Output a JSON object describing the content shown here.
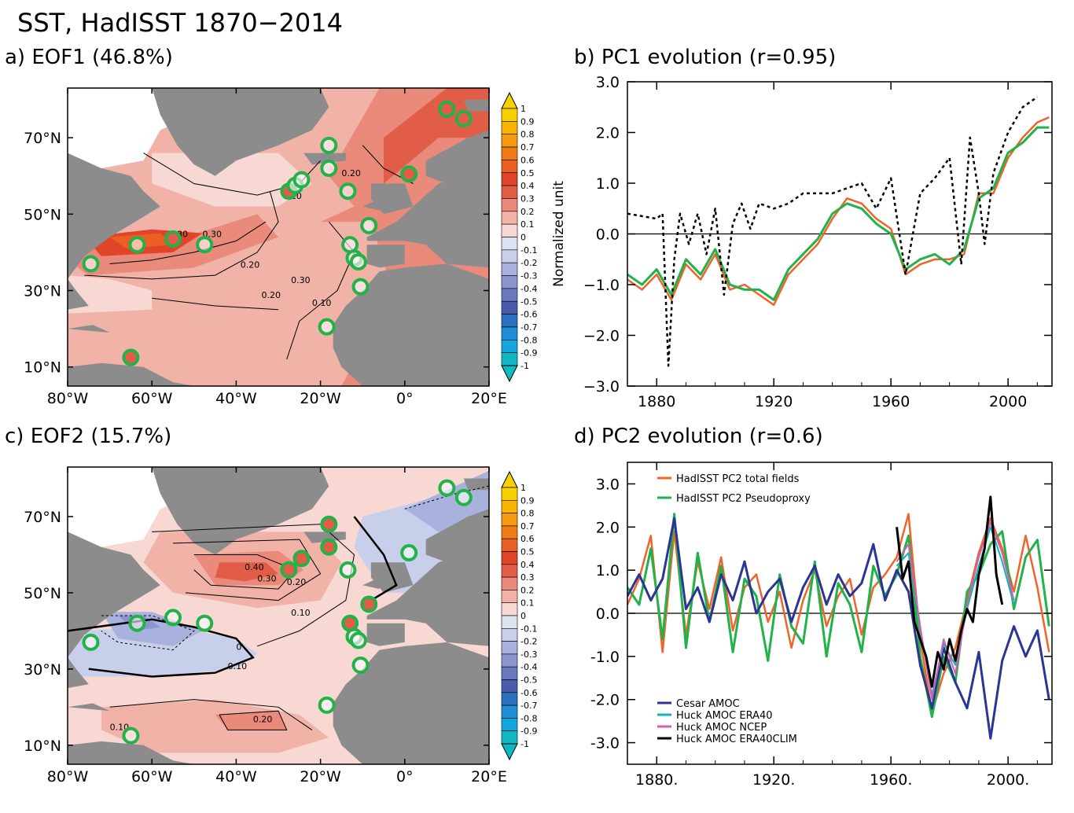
{
  "figure_title": "SST, HadISST 1870−2014",
  "colors": {
    "land": "#8c8c8c",
    "ice": "#ffffff",
    "station_ring": "#21b24a",
    "hadisst_total": "#f0642a",
    "hadisst_pseudo": "#21b24a",
    "cesar": "#2b3594",
    "huck_era40": "#10b5b5",
    "huck_ncep": "#d060b0",
    "huck_clim": "#000000",
    "proxy_dotted": "#000000"
  },
  "colorbar": {
    "levels": [
      "1",
      "0.9",
      "0.8",
      "0.7",
      "0.6",
      "0.5",
      "0.4",
      "0.3",
      "0.2",
      "0.1",
      "0",
      "-0.1",
      "-0.2",
      "-0.3",
      "-0.4",
      "-0.5",
      "-0.6",
      "-0.7",
      "-0.8",
      "-0.9",
      "-1"
    ],
    "colors": [
      "#f7d000",
      "#f9b400",
      "#f89a10",
      "#f07c18",
      "#ec5f22",
      "#e0452a",
      "#e25d48",
      "#e98a7a",
      "#f1b2a8",
      "#f8d8d2",
      "#dde2f1",
      "#c7cfea",
      "#a8b2dc",
      "#8a96cc",
      "#6a78bc",
      "#4a5ca8",
      "#2c70c0",
      "#1e8ed6",
      "#12a8de",
      "#10b8c4"
    ]
  },
  "chart_data": [
    {
      "type": "heatmap",
      "panel": "a",
      "title": "a) EOF1 (46.8%)",
      "xlabel": "",
      "ylabel": "",
      "xlim": [
        -80,
        20
      ],
      "ylim": [
        5,
        83
      ],
      "x_ticks": [
        "80°W",
        "60°W",
        "40°W",
        "20°W",
        "0°",
        "20°E"
      ],
      "y_ticks": [
        "10°N",
        "30°N",
        "50°N",
        "70°N"
      ],
      "contour_labels": [
        "0.10",
        "0.20",
        "0.30",
        "0.20",
        "0.30",
        "0.20",
        "0.10",
        "0.30"
      ],
      "stations": [
        [
          -74.5,
          37
        ],
        [
          -63.5,
          42
        ],
        [
          -55,
          43.5
        ],
        [
          -47.5,
          42
        ],
        [
          -27.5,
          56
        ],
        [
          -26,
          57.5
        ],
        [
          -24.5,
          59
        ],
        [
          -18,
          68
        ],
        [
          -18,
          62
        ],
        [
          -13.5,
          56
        ],
        [
          -13,
          42
        ],
        [
          -12,
          38.5
        ],
        [
          -11,
          37.5
        ],
        [
          -8.5,
          47
        ],
        [
          -10.5,
          31
        ],
        [
          -18.5,
          20.5
        ],
        [
          -65,
          12.5
        ],
        [
          1,
          60.5
        ],
        [
          10,
          77.5
        ],
        [
          14,
          75
        ]
      ],
      "stations_filled": [
        2,
        4,
        16,
        17,
        18,
        19
      ]
    },
    {
      "type": "line",
      "panel": "b",
      "title": "b) PC1 evolution (r=0.95)",
      "xlabel": "",
      "ylabel": "Normalized unit",
      "xlim": [
        1870,
        2015
      ],
      "ylim": [
        -3,
        3
      ],
      "x_ticks": [
        "1880",
        "1920",
        "1960",
        "2000"
      ],
      "y_ticks": [
        "−3.0",
        "−2.0",
        "−1.0",
        "0.0",
        "1.0",
        "2.0",
        "3.0"
      ],
      "series": [
        {
          "color_key": "hadisst_total",
          "dash": "",
          "width": 2.5,
          "x": [
            1870,
            1875,
            1880,
            1885,
            1890,
            1895,
            1900,
            1905,
            1910,
            1915,
            1920,
            1925,
            1930,
            1935,
            1940,
            1945,
            1950,
            1955,
            1960,
            1965,
            1970,
            1975,
            1980,
            1985,
            1990,
            1995,
            2000,
            2005,
            2010,
            2014
          ],
          "y": [
            -0.9,
            -1.1,
            -0.8,
            -1.3,
            -0.6,
            -0.9,
            -0.4,
            -1.1,
            -1.0,
            -1.2,
            -1.4,
            -0.8,
            -0.5,
            -0.2,
            0.3,
            0.7,
            0.6,
            0.3,
            0.1,
            -0.8,
            -0.6,
            -0.5,
            -0.5,
            -0.4,
            0.8,
            0.8,
            1.5,
            1.9,
            2.2,
            2.3
          ]
        },
        {
          "color_key": "hadisst_pseudo",
          "dash": "",
          "width": 3,
          "x": [
            1870,
            1875,
            1880,
            1885,
            1890,
            1895,
            1900,
            1905,
            1910,
            1915,
            1920,
            1925,
            1930,
            1935,
            1940,
            1945,
            1950,
            1955,
            1960,
            1965,
            1970,
            1975,
            1980,
            1985,
            1990,
            1995,
            2000,
            2005,
            2010,
            2014
          ],
          "y": [
            -0.8,
            -1.0,
            -0.7,
            -1.2,
            -0.5,
            -0.8,
            -0.3,
            -1.0,
            -1.1,
            -1.1,
            -1.3,
            -0.7,
            -0.4,
            -0.1,
            0.4,
            0.6,
            0.5,
            0.2,
            0.0,
            -0.7,
            -0.5,
            -0.4,
            -0.6,
            -0.3,
            0.7,
            0.9,
            1.6,
            1.8,
            2.1,
            2.1
          ]
        },
        {
          "color_key": "proxy_dotted",
          "dash": "4 4",
          "width": 2.5,
          "x": [
            1870,
            1875,
            1880,
            1882,
            1884,
            1886,
            1888,
            1891,
            1894,
            1897,
            1900,
            1903,
            1906,
            1909,
            1912,
            1915,
            1920,
            1925,
            1930,
            1935,
            1940,
            1945,
            1950,
            1955,
            1960,
            1965,
            1970,
            1975,
            1980,
            1984,
            1987,
            1990,
            1992,
            1995,
            2000,
            2005,
            2010
          ],
          "y": [
            0.4,
            0.35,
            0.3,
            0.4,
            -2.6,
            -0.5,
            0.4,
            -0.2,
            0.4,
            -0.4,
            0.5,
            -1.2,
            0.2,
            0.6,
            0.1,
            0.6,
            0.5,
            0.6,
            0.8,
            0.8,
            0.8,
            0.9,
            1.0,
            0.5,
            1.1,
            -0.8,
            0.8,
            1.1,
            1.5,
            -0.6,
            1.9,
            0.8,
            -0.2,
            1.2,
            2.0,
            2.5,
            2.7
          ]
        }
      ]
    },
    {
      "type": "heatmap",
      "panel": "c",
      "title": "c) EOF2 (15.7%)",
      "xlabel": "",
      "ylabel": "",
      "xlim": [
        -80,
        20
      ],
      "ylim": [
        5,
        83
      ],
      "x_ticks": [
        "80°W",
        "60°W",
        "40°W",
        "20°W",
        "0°",
        "20°E"
      ],
      "y_ticks": [
        "10°N",
        "30°N",
        "50°N",
        "70°N"
      ],
      "contour_labels": [
        "0.40",
        "0.30",
        "0.20",
        "0.10",
        "0.10",
        "0",
        "0.10",
        "0.20"
      ],
      "stations": [
        [
          -74.5,
          37
        ],
        [
          -63.5,
          42
        ],
        [
          -55,
          43.5
        ],
        [
          -47.5,
          42
        ],
        [
          -27.5,
          56
        ],
        [
          -24.5,
          59
        ],
        [
          -18,
          68
        ],
        [
          -18,
          62
        ],
        [
          -13.5,
          56
        ],
        [
          -13,
          42
        ],
        [
          -12,
          38.5
        ],
        [
          -11,
          37.5
        ],
        [
          -8.5,
          47
        ],
        [
          -10.5,
          31
        ],
        [
          -18.5,
          20.5
        ],
        [
          -65,
          12.5
        ],
        [
          1,
          60.5
        ],
        [
          10,
          77.5
        ],
        [
          14,
          75
        ]
      ],
      "stations_filled": [
        4,
        5,
        6,
        7,
        9,
        12
      ]
    },
    {
      "type": "line",
      "panel": "d",
      "title": "d) PC2 evolution (r=0.6)",
      "xlabel": "",
      "ylabel": "",
      "xlim": [
        1870,
        2015
      ],
      "ylim": [
        -3.5,
        3.5
      ],
      "x_ticks": [
        "1880.",
        "1920.",
        "1960.",
        "2000."
      ],
      "y_ticks": [
        "-3.0",
        "-2.0",
        "-1.0",
        "0.0",
        "1.0",
        "2.0",
        "3.0"
      ],
      "legend_top": [
        {
          "name": "HadISST PC2 total fields",
          "color_key": "hadisst_total"
        },
        {
          "name": "HadISST PC2 Pseudoproxy",
          "color_key": "hadisst_pseudo"
        }
      ],
      "legend_bottom": [
        {
          "name": "Cesar AMOC",
          "color_key": "cesar"
        },
        {
          "name": "Huck AMOC ERA40",
          "color_key": "huck_era40"
        },
        {
          "name": "Huck AMOC NCEP",
          "color_key": "huck_ncep"
        },
        {
          "name": "Huck AMOC ERA40CLIM",
          "color_key": "huck_clim"
        }
      ],
      "series": [
        {
          "color_key": "hadisst_total",
          "width": 2.5,
          "x": [
            1870,
            1874,
            1878,
            1882,
            1886,
            1890,
            1894,
            1898,
            1902,
            1906,
            1910,
            1914,
            1918,
            1922,
            1926,
            1930,
            1934,
            1938,
            1942,
            1946,
            1950,
            1954,
            1958,
            1962,
            1966,
            1970,
            1974,
            1978,
            1982,
            1986,
            1990,
            1994,
            1998,
            2002,
            2006,
            2010,
            2014
          ],
          "y": [
            0.2,
            0.8,
            1.8,
            -0.9,
            1.9,
            -0.5,
            1.2,
            0.1,
            1.3,
            -0.4,
            0.6,
            0.9,
            -0.2,
            0.5,
            -0.8,
            0.3,
            1.0,
            -0.3,
            0.4,
            0.8,
            -0.5,
            0.6,
            0.9,
            1.3,
            2.3,
            -0.6,
            -2.3,
            -1.4,
            -0.8,
            0.3,
            1.4,
            2.2,
            1.5,
            0.5,
            1.8,
            0.6,
            -0.9
          ]
        },
        {
          "color_key": "hadisst_pseudo",
          "width": 3,
          "x": [
            1870,
            1874,
            1878,
            1882,
            1886,
            1890,
            1894,
            1898,
            1902,
            1906,
            1910,
            1914,
            1918,
            1922,
            1926,
            1930,
            1934,
            1938,
            1942,
            1946,
            1950,
            1954,
            1958,
            1962,
            1966,
            1970,
            1974,
            1978,
            1982,
            1986,
            1990,
            1994,
            1998,
            2002,
            2006,
            2010,
            2014
          ],
          "y": [
            0.6,
            0.2,
            1.5,
            -0.6,
            2.3,
            -0.8,
            1.4,
            -0.2,
            1.1,
            -0.9,
            0.8,
            0.4,
            -1.1,
            0.9,
            -0.3,
            -0.7,
            1.2,
            -1.0,
            0.7,
            0.2,
            -0.9,
            1.1,
            0.4,
            0.9,
            1.8,
            -1.0,
            -2.4,
            -1.0,
            -1.6,
            0.5,
            0.9,
            1.6,
            1.9,
            0.1,
            1.3,
            1.7,
            -0.3
          ]
        },
        {
          "color_key": "cesar",
          "width": 3,
          "x": [
            1870,
            1874,
            1878,
            1882,
            1886,
            1890,
            1894,
            1898,
            1902,
            1906,
            1910,
            1914,
            1918,
            1922,
            1926,
            1930,
            1934,
            1938,
            1942,
            1946,
            1950,
            1954,
            1958,
            1962,
            1966,
            1970,
            1974,
            1978,
            1982,
            1986,
            1990,
            1994,
            1998,
            2002,
            2006,
            2010,
            2014
          ],
          "y": [
            0.4,
            0.9,
            0.3,
            0.8,
            2.2,
            0.1,
            0.6,
            -0.2,
            0.9,
            0.3,
            1.2,
            0.0,
            0.5,
            0.8,
            -0.2,
            0.6,
            1.1,
            0.2,
            0.9,
            0.4,
            0.7,
            1.6,
            0.3,
            1.0,
            0.5,
            -1.2,
            -2.2,
            -0.8,
            -1.6,
            -2.2,
            -0.9,
            -2.9,
            -1.1,
            -0.3,
            -1.0,
            -0.4,
            -2.0
          ]
        },
        {
          "color_key": "huck_era40",
          "width": 2,
          "x": [
            1962,
            1966,
            1970,
            1974,
            1978,
            1982,
            1986,
            1990,
            1994,
            1998,
            2002
          ],
          "y": [
            1.1,
            1.4,
            -0.4,
            -1.9,
            -0.7,
            -1.2,
            0.1,
            1.1,
            2.0,
            1.2,
            0.2
          ]
        },
        {
          "color_key": "huck_ncep",
          "width": 2,
          "x": [
            1962,
            1966,
            1970,
            1974,
            1978,
            1982,
            1986,
            1990,
            1994,
            1998,
            2002
          ],
          "y": [
            1.2,
            1.6,
            -0.3,
            -2.0,
            -0.6,
            -1.4,
            0.2,
            1.3,
            2.1,
            1.4,
            0.3
          ]
        },
        {
          "color_key": "huck_clim",
          "width": 3,
          "x": [
            1962,
            1964,
            1966,
            1968,
            1970,
            1972,
            1974,
            1976,
            1978,
            1980,
            1982,
            1984,
            1986,
            1988,
            1990,
            1992,
            1994,
            1996,
            1998
          ],
          "y": [
            2.0,
            0.8,
            1.2,
            -0.2,
            -0.6,
            -1.0,
            -1.7,
            -0.9,
            -1.3,
            -0.6,
            -1.1,
            -0.4,
            0.1,
            -0.2,
            0.9,
            1.5,
            2.7,
            0.9,
            0.2
          ]
        }
      ]
    }
  ]
}
